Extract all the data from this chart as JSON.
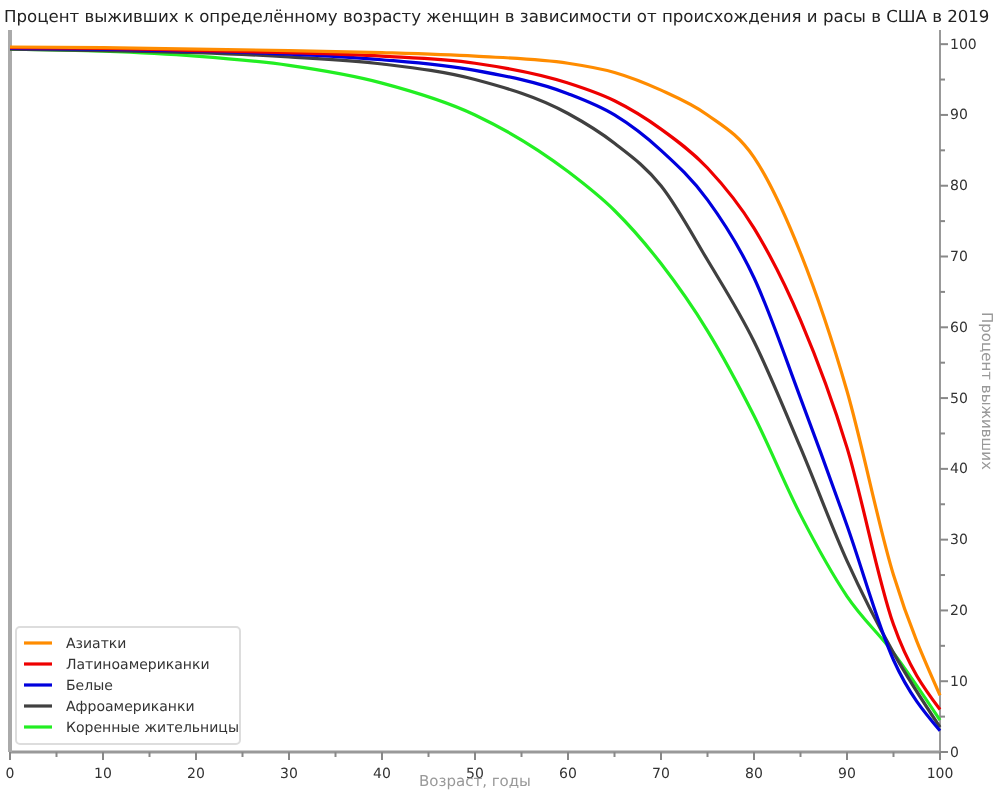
{
  "chart_data": {
    "type": "line",
    "title": "Процент выживших к определённому возрасту женщин в зависимости от происхождения и расы в США в 2019",
    "xlabel": "Возраст, годы",
    "ylabel": "Процент выживших",
    "x": [
      0,
      10,
      20,
      30,
      40,
      50,
      60,
      65,
      70,
      75,
      80,
      85,
      90,
      95,
      100
    ],
    "series": [
      {
        "name": "Азиатки",
        "color": "#ff8c00",
        "values": [
          99.6,
          99.5,
          99.3,
          99.1,
          98.8,
          98.3,
          97.3,
          96,
          93.5,
          90,
          84,
          70.5,
          51,
          25,
          8
        ]
      },
      {
        "name": "Латиноамериканки",
        "color": "#ee0000",
        "values": [
          99.5,
          99.4,
          99.1,
          98.8,
          98.3,
          97.3,
          94.5,
          92,
          88,
          82.5,
          74,
          61,
          43,
          18,
          6
        ]
      },
      {
        "name": "Белые",
        "color": "#0000dd",
        "values": [
          99.4,
          99.3,
          99,
          98.6,
          97.8,
          96.3,
          93,
          90,
          85,
          78,
          67,
          50,
          32,
          13,
          3
        ]
      },
      {
        "name": "Афроамериканки",
        "color": "#404040",
        "values": [
          99.3,
          99.1,
          98.8,
          98.2,
          97.2,
          95,
          90.2,
          86,
          80,
          69.5,
          58,
          43,
          27,
          14,
          3.5
        ]
      },
      {
        "name": "Коренные жительницы",
        "color": "#22ee22",
        "values": [
          99.3,
          99,
          98.3,
          97,
          94.5,
          90,
          82,
          76.5,
          69,
          59.5,
          47.5,
          33.5,
          22,
          14,
          4.5
        ]
      }
    ],
    "xlim": [
      0,
      100
    ],
    "ylim": [
      0,
      102
    ],
    "xticks": [
      0,
      {
        "value": 5,
        "label": null
      },
      10,
      {
        "value": 15,
        "label": null
      },
      20,
      {
        "value": 25,
        "label": null
      },
      30,
      {
        "value": 35,
        "label": null
      },
      40,
      {
        "value": 45,
        "label": null
      },
      50,
      {
        "value": 55,
        "label": null
      },
      60,
      {
        "value": 65,
        "label": null
      },
      70,
      {
        "value": 75,
        "label": null
      },
      80,
      {
        "value": 85,
        "label": null
      },
      90,
      {
        "value": 95,
        "label": null
      },
      100
    ],
    "yticks": [
      0,
      {
        "value": 5,
        "label": null
      },
      10,
      {
        "value": 15,
        "label": null
      },
      20,
      {
        "value": 25,
        "label": null
      },
      30,
      {
        "value": 35,
        "label": null
      },
      40,
      {
        "value": 45,
        "label": null
      },
      50,
      {
        "value": 55,
        "label": null
      },
      60,
      {
        "value": 65,
        "label": null
      },
      70,
      {
        "value": 75,
        "label": null
      },
      80,
      {
        "value": 85,
        "label": null
      },
      90,
      {
        "value": 95,
        "label": null
      },
      100
    ],
    "grid": false,
    "legend": "bottom left",
    "marker": "none",
    "line_style": "solid"
  }
}
